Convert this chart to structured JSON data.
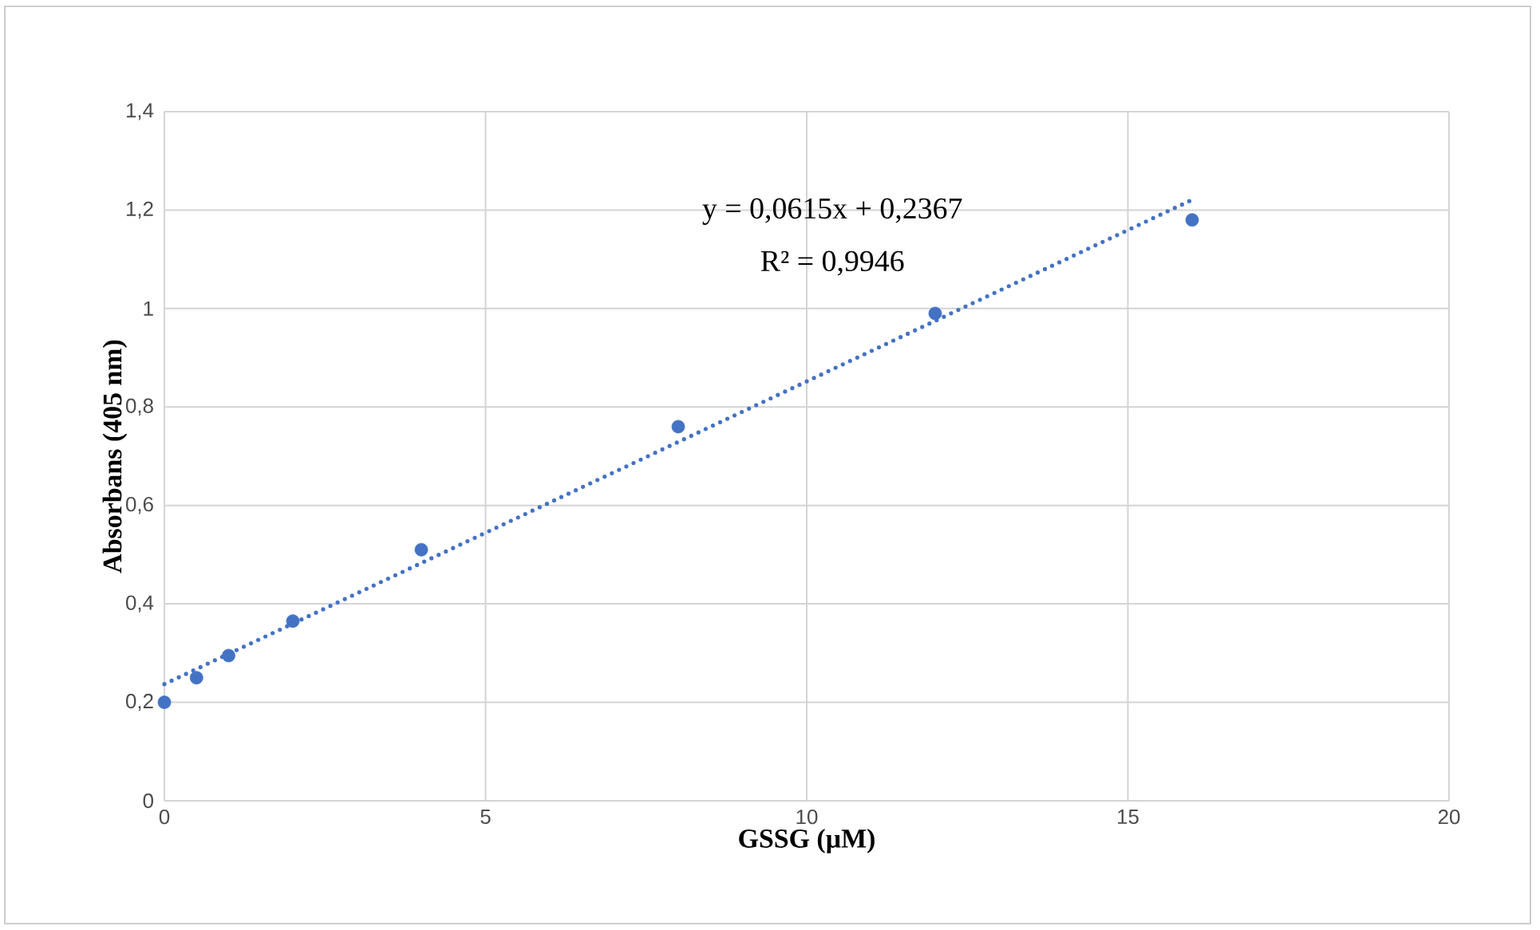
{
  "chart_data": {
    "type": "scatter",
    "xlabel": "GSSG (µM)",
    "ylabel": "Absorbans (405 nm)",
    "annotations": [
      "y = 0,0615x + 0,2367",
      "R² = 0,9946"
    ],
    "series": [
      {
        "color": "#4472c4",
        "marker": "circle",
        "x": [
          0,
          0.5,
          1,
          2,
          4,
          8,
          12,
          16
        ],
        "values": [
          0.2,
          0.25,
          0.295,
          0.365,
          0.51,
          0.76,
          0.99,
          1.18
        ]
      },
      {
        "type": "line",
        "color": "#4472c4",
        "marker": "none",
        "line_style": "dotted",
        "x": [
          0,
          16
        ],
        "values": [
          0.237,
          1.221
        ]
      }
    ],
    "xlim": [
      0,
      20
    ],
    "xticks": [
      0,
      5,
      10,
      15,
      20
    ],
    "ylim": [
      0,
      1.4
    ],
    "yticks": [
      0,
      {
        "value": 0.2,
        "label": "0,2"
      },
      {
        "value": 0.4,
        "label": "0,4"
      },
      {
        "value": 0.6,
        "label": "0,6"
      },
      {
        "value": 0.8,
        "label": "0,8"
      },
      1,
      {
        "value": 1.2,
        "label": "1,2"
      },
      {
        "value": 1.4,
        "label": "1,4"
      }
    ],
    "grid": true
  }
}
